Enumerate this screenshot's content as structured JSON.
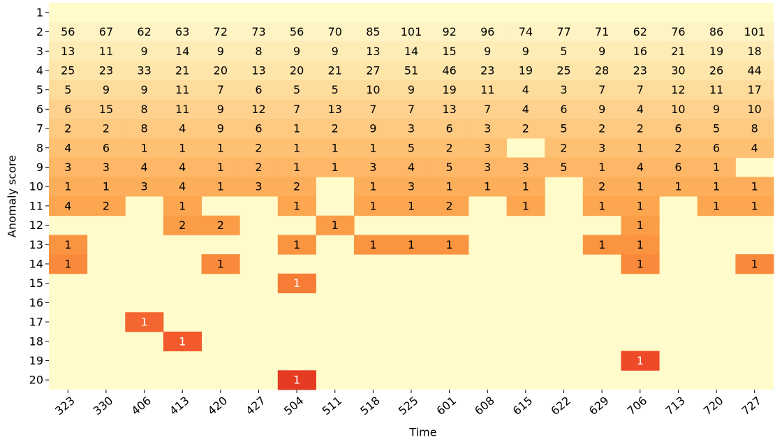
{
  "chart_data": {
    "type": "heatmap",
    "x_label": "Time",
    "y_label": "Anomaly score",
    "x_categories": [
      323,
      330,
      406,
      413,
      420,
      427,
      504,
      511,
      518,
      525,
      601,
      608,
      615,
      622,
      629,
      706,
      713,
      720,
      727
    ],
    "y_categories": [
      1,
      2,
      3,
      4,
      5,
      6,
      7,
      8,
      9,
      10,
      11,
      12,
      13,
      14,
      15,
      16,
      17,
      18,
      19,
      20
    ],
    "values": [
      [
        null,
        null,
        null,
        null,
        null,
        null,
        null,
        null,
        null,
        null,
        null,
        null,
        null,
        null,
        null,
        null,
        null,
        null,
        null
      ],
      [
        56,
        67,
        62,
        63,
        72,
        73,
        56,
        70,
        85,
        101,
        92,
        96,
        74,
        77,
        71,
        62,
        76,
        86,
        101
      ],
      [
        13,
        11,
        9,
        14,
        9,
        8,
        9,
        9,
        13,
        14,
        15,
        9,
        9,
        5,
        9,
        16,
        21,
        19,
        18
      ],
      [
        25,
        23,
        33,
        21,
        20,
        13,
        20,
        21,
        27,
        51,
        46,
        23,
        19,
        25,
        28,
        23,
        30,
        26,
        44
      ],
      [
        5,
        9,
        9,
        11,
        7,
        6,
        5,
        5,
        10,
        9,
        19,
        11,
        4,
        3,
        7,
        7,
        12,
        11,
        17
      ],
      [
        6,
        15,
        8,
        11,
        9,
        12,
        7,
        13,
        7,
        7,
        13,
        7,
        4,
        6,
        9,
        4,
        10,
        9,
        10
      ],
      [
        2,
        2,
        8,
        4,
        9,
        6,
        1,
        2,
        9,
        3,
        6,
        3,
        2,
        5,
        2,
        2,
        6,
        5,
        8
      ],
      [
        4,
        6,
        1,
        1,
        1,
        2,
        1,
        1,
        1,
        5,
        2,
        3,
        null,
        2,
        3,
        1,
        2,
        6,
        4
      ],
      [
        3,
        3,
        4,
        4,
        1,
        2,
        1,
        1,
        3,
        4,
        5,
        3,
        3,
        5,
        1,
        4,
        6,
        1,
        null
      ],
      [
        1,
        1,
        3,
        4,
        1,
        3,
        2,
        null,
        1,
        3,
        1,
        1,
        1,
        null,
        2,
        1,
        1,
        1,
        1
      ],
      [
        4,
        2,
        null,
        1,
        null,
        null,
        1,
        null,
        1,
        1,
        2,
        null,
        1,
        null,
        1,
        1,
        null,
        1,
        1
      ],
      [
        null,
        null,
        null,
        2,
        2,
        null,
        null,
        1,
        null,
        null,
        null,
        null,
        null,
        null,
        null,
        1,
        null,
        null,
        null
      ],
      [
        1,
        null,
        null,
        null,
        null,
        null,
        1,
        null,
        1,
        1,
        1,
        null,
        null,
        null,
        1,
        1,
        null,
        null,
        null
      ],
      [
        1,
        null,
        null,
        null,
        1,
        null,
        null,
        null,
        null,
        null,
        null,
        null,
        null,
        null,
        null,
        1,
        null,
        null,
        1
      ],
      [
        null,
        null,
        null,
        null,
        null,
        null,
        1,
        null,
        null,
        null,
        null,
        null,
        null,
        null,
        null,
        null,
        null,
        null,
        null
      ],
      [
        null,
        null,
        null,
        null,
        null,
        null,
        null,
        null,
        null,
        null,
        null,
        null,
        null,
        null,
        null,
        null,
        null,
        null,
        null
      ],
      [
        null,
        null,
        1,
        null,
        null,
        null,
        null,
        null,
        null,
        null,
        null,
        null,
        null,
        null,
        null,
        null,
        null,
        null,
        null
      ],
      [
        null,
        null,
        null,
        1,
        null,
        null,
        null,
        null,
        null,
        null,
        null,
        null,
        null,
        null,
        null,
        null,
        null,
        null,
        null
      ],
      [
        null,
        null,
        null,
        null,
        null,
        null,
        null,
        null,
        null,
        null,
        null,
        null,
        null,
        null,
        null,
        1,
        null,
        null,
        null
      ],
      [
        null,
        null,
        null,
        null,
        null,
        null,
        1,
        null,
        null,
        null,
        null,
        null,
        null,
        null,
        null,
        null,
        null,
        null,
        null
      ]
    ],
    "background_color": "#fffbcb",
    "row_colors": [
      "#fffbcb",
      "#fef3c3",
      "#feecb6",
      "#fee5aa",
      "#fedc9c",
      "#fed28e",
      "#fec981",
      "#fec073",
      "#fdb766",
      "#fdae5a",
      "#fca650",
      "#fb9d47",
      "#fa9441",
      "#f98a3b",
      "#f77d37",
      "#f57134",
      "#f46631",
      "#f2592c",
      "#ee4a27",
      "#e43b22"
    ],
    "text_colors": [
      "#000",
      "#000",
      "#000",
      "#000",
      "#000",
      "#000",
      "#000",
      "#000",
      "#000",
      "#000",
      "#000",
      "#000",
      "#000",
      "#000",
      "#fff",
      "#fff",
      "#fff",
      "#fff",
      "#fff",
      "#fff"
    ]
  }
}
